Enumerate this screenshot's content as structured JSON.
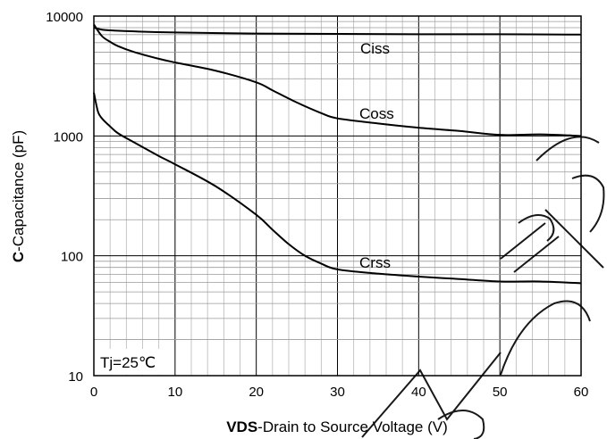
{
  "chart_data": {
    "type": "line",
    "xlabel": {
      "bold": "VDS",
      "rest": "-Drain to Source Voltage (V)"
    },
    "ylabel": {
      "bold": "C",
      "rest": "-Capacitance (pF)"
    },
    "xlim": [
      0,
      60
    ],
    "ylim": [
      10,
      10000
    ],
    "yscale": "log",
    "x_ticks": [
      "0",
      "10",
      "20",
      "30",
      "40",
      "50",
      "60"
    ],
    "y_ticks": [
      "10",
      "100",
      "1000",
      "10000"
    ],
    "grid": true,
    "annotation": "Tj=25℃",
    "series": [
      {
        "name": "Ciss",
        "x": [
          0,
          1,
          2,
          5,
          10,
          20,
          30,
          40,
          50,
          60
        ],
        "y": [
          8000,
          7700,
          7600,
          7450,
          7300,
          7150,
          7100,
          7050,
          7050,
          7000
        ]
      },
      {
        "name": "Coss",
        "x": [
          0,
          1,
          2,
          3,
          5,
          8,
          10,
          15,
          20,
          22,
          25,
          28,
          30,
          35,
          40,
          45,
          50,
          55,
          60
        ],
        "y": [
          8500,
          6800,
          6100,
          5600,
          5000,
          4400,
          4100,
          3500,
          2800,
          2400,
          1900,
          1550,
          1400,
          1270,
          1170,
          1100,
          1020,
          1030,
          1000
        ]
      },
      {
        "name": "Crss",
        "x": [
          0,
          0.5,
          1,
          2,
          3,
          5,
          8,
          10,
          15,
          20,
          22,
          24,
          26,
          28,
          30,
          35,
          40,
          45,
          50,
          55,
          60
        ],
        "y": [
          2300,
          1600,
          1400,
          1200,
          1050,
          880,
          680,
          580,
          380,
          220,
          165,
          125,
          100,
          86,
          77,
          71,
          67,
          64,
          61,
          61,
          59
        ]
      }
    ],
    "watermark": "NOT RECOMMENDED"
  }
}
